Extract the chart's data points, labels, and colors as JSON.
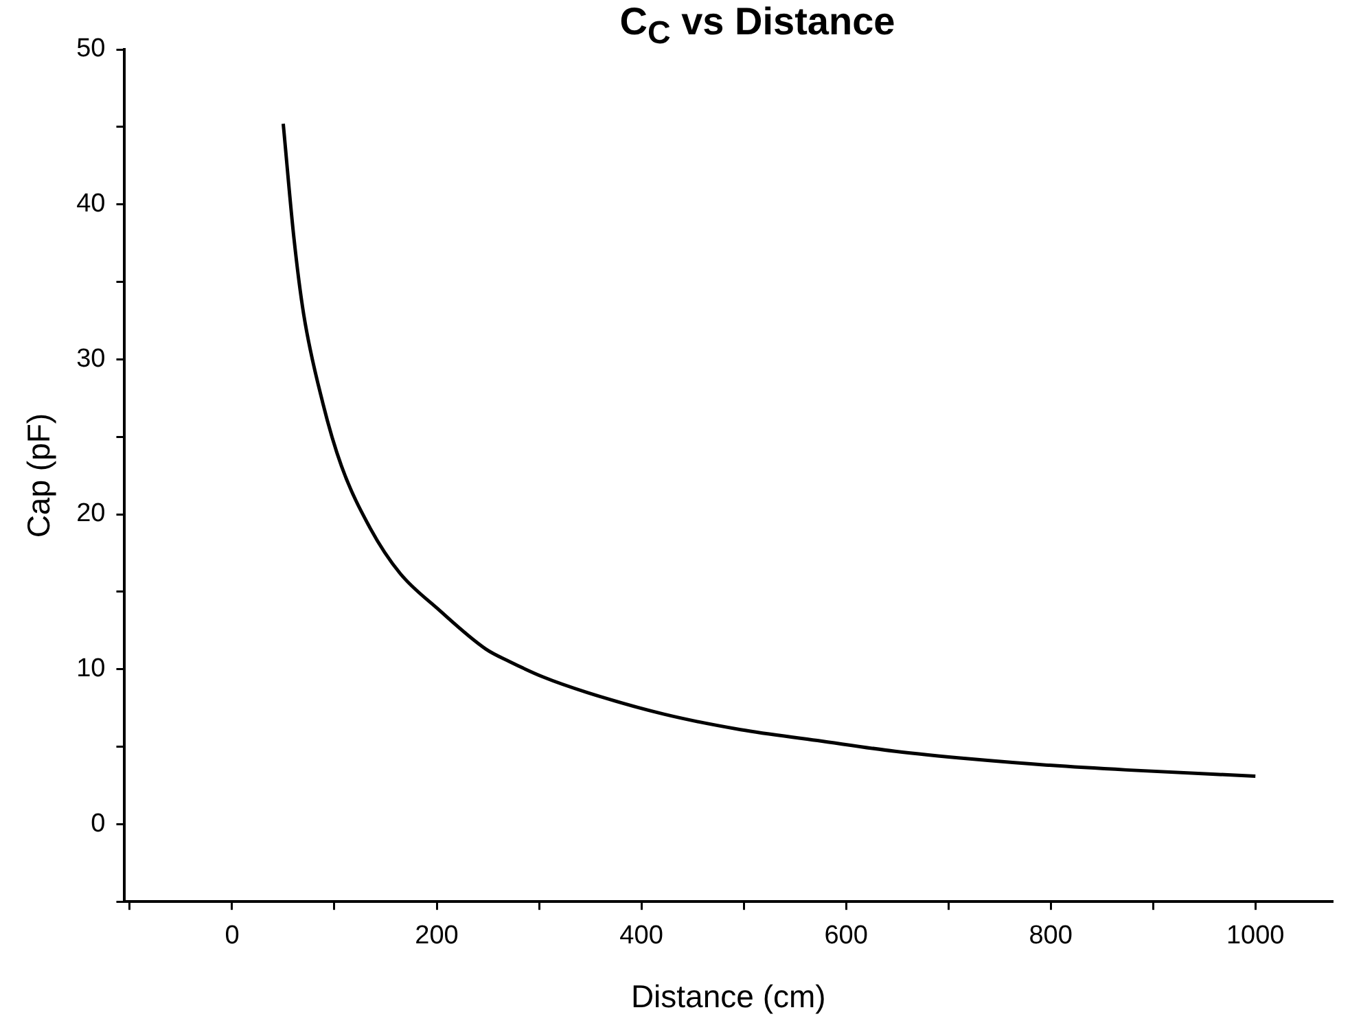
{
  "chart_data": {
    "type": "line",
    "title": "C$_{C}$ vs Distance",
    "xlabel": "Distance (cm)",
    "ylabel": "Cap (pF)",
    "x": [
      50,
      60.5,
      70,
      88.6,
      107,
      135,
      164,
      201,
      248,
      271,
      304,
      347,
      422,
      497,
      572,
      648,
      723,
      799,
      874,
      1000
    ],
    "series": [
      {
        "color": "#000000",
        "values": [
          45.2,
          37.8,
          32.9,
          27.2,
          23.1,
          19.1,
          16.2,
          13.9,
          11.3,
          10.5,
          9.5,
          8.5,
          7.1,
          6.1,
          5.4,
          4.7,
          4.2,
          3.8,
          3.5,
          3.1
        ]
      }
    ],
    "xlim": [
      -105,
      1075
    ],
    "xticks": [
      {
        "value": -100,
        "label": null
      },
      0,
      {
        "value": 100,
        "label": null
      },
      200,
      {
        "value": 300,
        "label": null
      },
      400,
      {
        "value": 500,
        "label": null
      },
      600,
      {
        "value": 700,
        "label": null
      },
      800,
      {
        "value": 900,
        "label": null
      },
      1000
    ],
    "ylim": [
      -5,
      50
    ],
    "yticks": [
      {
        "value": -5,
        "label": null
      },
      0,
      {
        "value": 5,
        "label": null
      },
      10,
      {
        "value": 15,
        "label": null
      },
      20,
      {
        "value": 25,
        "label": null
      },
      30,
      {
        "value": 35,
        "label": null
      },
      40,
      {
        "value": 45,
        "label": null
      },
      50
    ],
    "grid": false,
    "legend": false,
    "marker": "none",
    "line_style": "solid"
  }
}
